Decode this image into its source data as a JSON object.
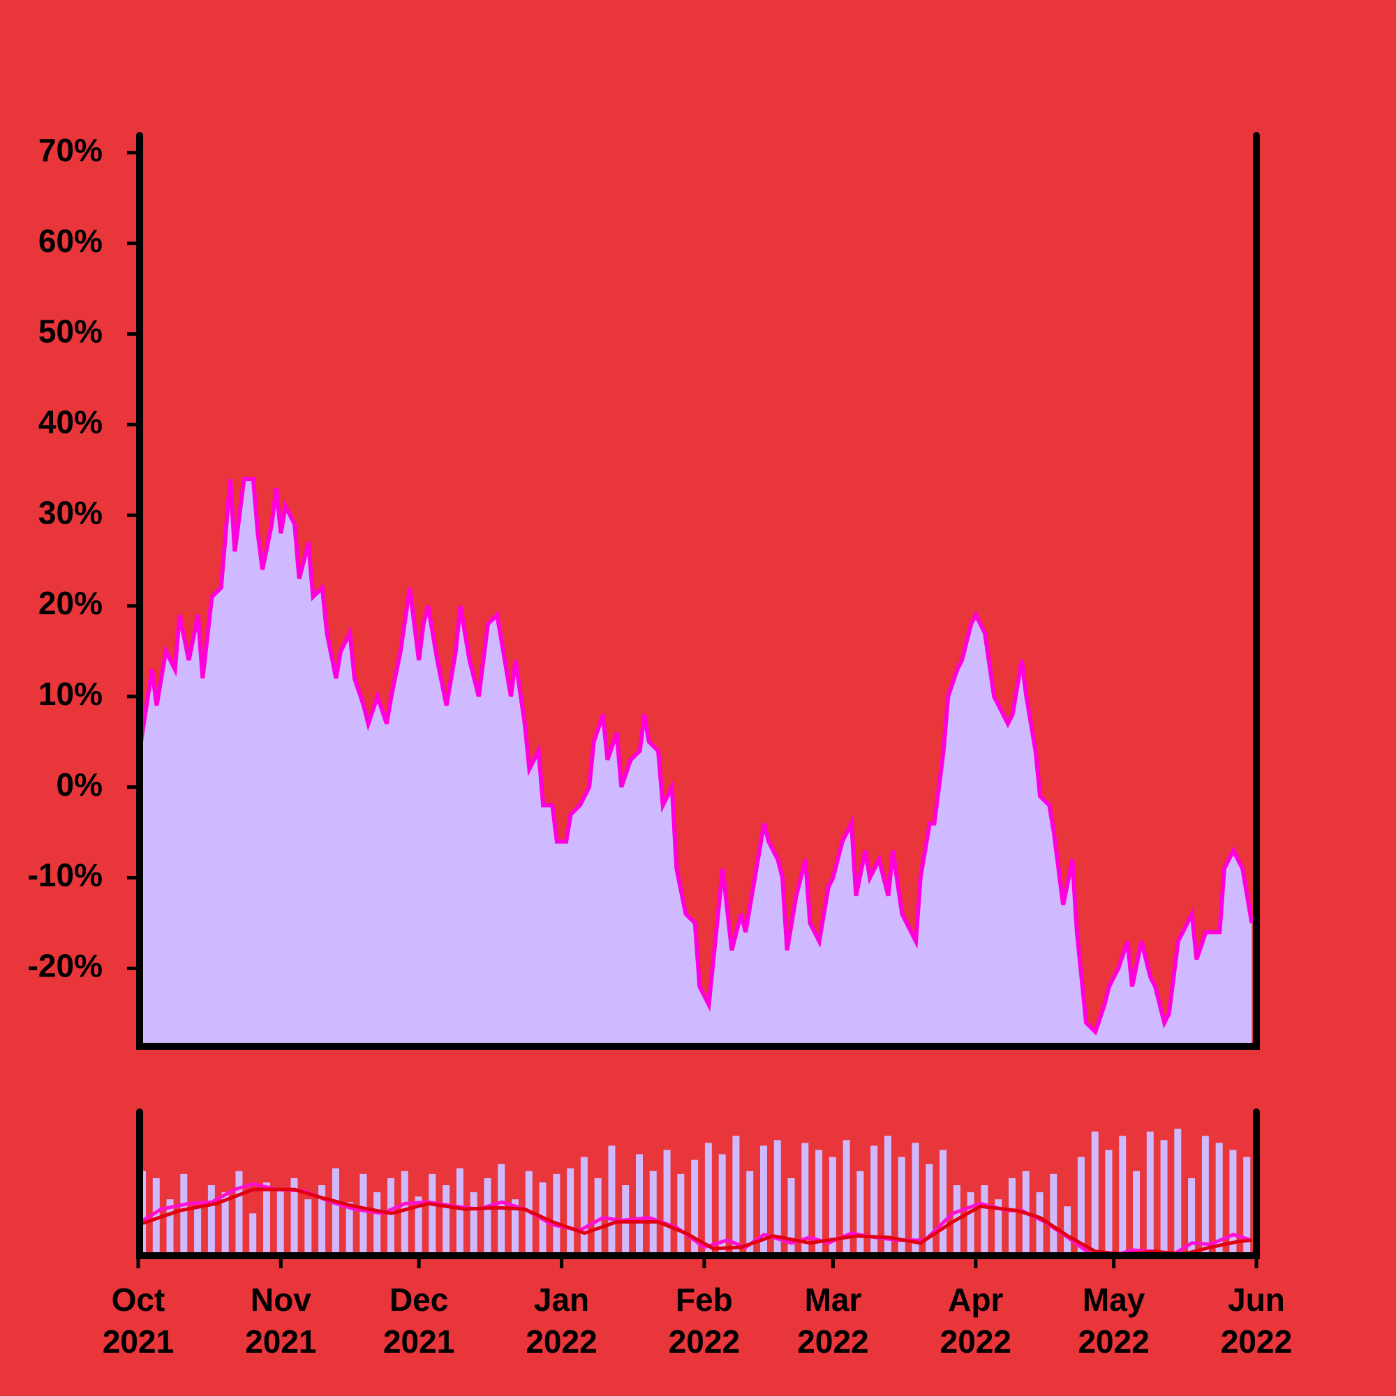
{
  "chart_data": [
    {
      "type": "area",
      "color": "#cfbaff",
      "line_color": "#ff00dd",
      "x": [
        0,
        3,
        4,
        6,
        8,
        9,
        11,
        13,
        14,
        16,
        18,
        20,
        21,
        23,
        25,
        26,
        27,
        29,
        30,
        31,
        32,
        34,
        35,
        37,
        38,
        40,
        41,
        43,
        44,
        46,
        47,
        49,
        50,
        52,
        54,
        55,
        57,
        59,
        61,
        62,
        63,
        65,
        67,
        69,
        70,
        72,
        74,
        76,
        78,
        79,
        81,
        82,
        84,
        85,
        87,
        88,
        90,
        91,
        93,
        94,
        96,
        98,
        99,
        101,
        102,
        104,
        105,
        107,
        109,
        110,
        111,
        113,
        114,
        116,
        117,
        119,
        121,
        122,
        124,
        125,
        127,
        129,
        131,
        132,
        134,
        136,
        137,
        139,
        140,
        141,
        143,
        145,
        146,
        148,
        150,
        151,
        153,
        155,
        156,
        158,
        159,
        161,
        163,
        164,
        166,
        167,
        169,
        170,
        172,
        173,
        175,
        176,
        178,
        179,
        181,
        182,
        184,
        186,
        187,
        189,
        190,
        192,
        193,
        195,
        196,
        198,
        199,
        201,
        203,
        204,
        206,
        208,
        210,
        211,
        213,
        215,
        216,
        218,
        220,
        221,
        223,
        224,
        226,
        227,
        229,
        230,
        232,
        233,
        235,
        236,
        238,
        240,
        241,
        242
      ],
      "values": [
        3,
        13,
        9,
        15,
        13,
        19,
        14,
        19,
        12,
        21,
        22,
        34,
        26,
        34,
        34,
        28,
        24,
        29,
        33,
        28,
        31,
        29,
        23,
        27,
        21,
        22,
        17,
        12,
        15,
        17,
        12,
        9,
        7,
        10,
        7,
        10,
        15,
        22,
        14,
        18,
        20,
        14,
        9,
        15,
        20,
        14,
        10,
        18,
        19,
        16,
        10,
        14,
        7,
        2,
        4,
        -2,
        -2,
        -6,
        -6,
        -3,
        -2,
        0,
        5,
        8,
        3,
        6,
        0,
        3,
        4,
        8,
        5,
        4,
        -2,
        0,
        -9,
        -14,
        -15,
        -22,
        -24,
        -19,
        -9,
        -18,
        -14,
        -16,
        -10,
        -4,
        -6,
        -8,
        -10,
        -18,
        -12,
        -8,
        -15,
        -17,
        -11,
        -10,
        -6,
        -4,
        -12,
        -7,
        -10,
        -8,
        -12,
        -7,
        -14,
        -15,
        -17,
        -10,
        -4,
        -4,
        4,
        10,
        13,
        14,
        18,
        19,
        17,
        10,
        9,
        7,
        8,
        14,
        10,
        4,
        -1,
        -2,
        -5,
        -13,
        -8,
        -16,
        -26,
        -27,
        -24,
        -22,
        -20,
        -17,
        -22,
        -17,
        -21,
        -22,
        -26,
        -25,
        -17,
        -16,
        -14,
        -19,
        -16,
        -16,
        -16,
        -9,
        -7,
        -9,
        -12,
        -15
      ],
      "xlim": [
        0,
        243
      ],
      "ylim": [
        -28.6,
        71.6
      ],
      "yticks": [
        {
          "value": -20,
          "label": "-20%"
        },
        {
          "value": -10,
          "label": "-10%"
        },
        {
          "value": 0,
          "label": "0%"
        },
        {
          "value": 10,
          "label": "10%"
        },
        {
          "value": 20,
          "label": "20%"
        },
        {
          "value": 30,
          "label": "30%"
        },
        {
          "value": 40,
          "label": "40%"
        },
        {
          "value": 50,
          "label": "50%"
        },
        {
          "value": 60,
          "label": "60%"
        },
        {
          "value": 70,
          "label": "70%"
        }
      ]
    },
    {
      "type": "combo",
      "color": "#cfbaff",
      "x": [
        0,
        3,
        6,
        9,
        12,
        15,
        18,
        21,
        24,
        27,
        30,
        33,
        36,
        39,
        42,
        45,
        48,
        51,
        54,
        57,
        60,
        63,
        66,
        69,
        72,
        75,
        78,
        81,
        84,
        87,
        90,
        93,
        96,
        99,
        102,
        105,
        108,
        111,
        114,
        117,
        120,
        123,
        126,
        129,
        132,
        135,
        138,
        141,
        144,
        147,
        150,
        153,
        156,
        159,
        162,
        165,
        168,
        171,
        174,
        177,
        180,
        183,
        186,
        189,
        192,
        195,
        198,
        201,
        204,
        207,
        210,
        213,
        216,
        219,
        222,
        225,
        228,
        231,
        234,
        237,
        240
      ],
      "values": [
        60,
        55,
        40,
        58,
        35,
        50,
        45,
        60,
        30,
        52,
        48,
        55,
        40,
        50,
        62,
        38,
        58,
        45,
        55,
        60,
        42,
        58,
        50,
        62,
        45,
        55,
        65,
        40,
        60,
        52,
        58,
        62,
        70,
        55,
        78,
        50,
        72,
        60,
        75,
        58,
        68,
        80,
        72,
        85,
        60,
        78,
        82,
        55,
        80,
        75,
        70,
        82,
        60,
        78,
        85,
        70,
        80,
        65,
        75,
        50,
        45,
        50,
        40,
        55,
        60,
        45,
        58,
        35,
        70,
        88,
        75,
        85,
        60,
        88,
        82,
        90,
        55,
        85,
        80,
        75,
        70
      ],
      "lines": [
        {
          "color": "#ff10d0",
          "x": [
            1,
            5,
            11,
            16,
            21,
            25,
            30,
            36,
            42,
            47,
            53,
            58,
            63,
            69,
            74,
            79,
            84,
            90,
            96,
            101,
            105,
            111,
            117,
            123,
            128,
            132,
            136,
            142,
            146,
            150,
            155,
            160,
            165,
            171,
            177,
            183,
            189,
            192,
            197,
            202,
            207,
            212,
            216,
            221,
            225,
            229,
            233,
            238,
            242
          ],
          "values": [
            25,
            33,
            37,
            38,
            47,
            51,
            47,
            46,
            38,
            33,
            30,
            37,
            38,
            35,
            33,
            38,
            33,
            22,
            18,
            27,
            25,
            27,
            20,
            6,
            11,
            6,
            15,
            9,
            13,
            9,
            16,
            13,
            11,
            11,
            30,
            37,
            32,
            32,
            24,
            13,
            1,
            0,
            4,
            3,
            1,
            9,
            8,
            15,
            11
          ]
        },
        {
          "color": "#e00010",
          "x": [
            1,
            9,
            17,
            25,
            34,
            40,
            47,
            55,
            63,
            71,
            78,
            84,
            90,
            97,
            104,
            113,
            119,
            125,
            131,
            138,
            146,
            156,
            163,
            170,
            177,
            183,
            191,
            196,
            202,
            208,
            214,
            221,
            227,
            233,
            239,
            242
          ],
          "values": [
            23,
            32,
            37,
            47,
            47,
            41,
            35,
            30,
            37,
            33,
            34,
            33,
            24,
            16,
            24,
            24,
            16,
            5,
            6,
            14,
            9,
            14,
            13,
            9,
            24,
            35,
            32,
            27,
            14,
            3,
            1,
            3,
            1,
            6,
            10,
            11
          ]
        }
      ],
      "xlim": [
        0,
        243
      ],
      "ylim": [
        0,
        100
      ],
      "xticks": [
        {
          "value": 0,
          "label": "Oct 2021"
        },
        {
          "value": 31,
          "label": "Nov 2021"
        },
        {
          "value": 61,
          "label": "Dec 2021"
        },
        {
          "value": 92,
          "label": "Jan 2022"
        },
        {
          "value": 123,
          "label": "Feb 2022"
        },
        {
          "value": 151,
          "label": "Mar 2022"
        },
        {
          "value": 182,
          "label": "Apr 2022"
        },
        {
          "value": 212,
          "label": "May 2022"
        },
        {
          "value": 243,
          "label": "Jun 2022"
        }
      ]
    }
  ]
}
